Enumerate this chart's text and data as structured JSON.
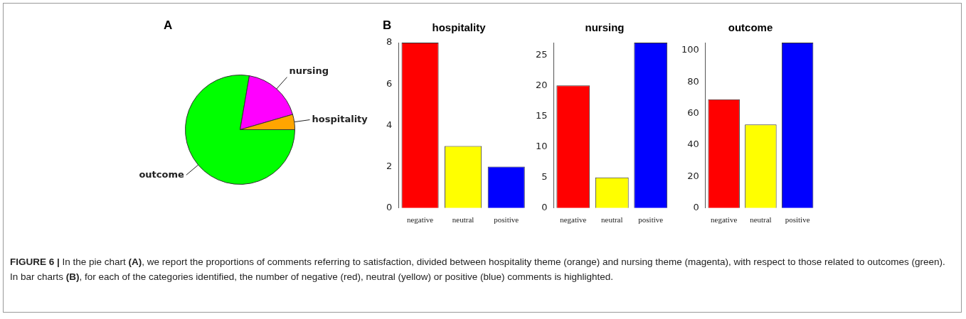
{
  "chart_data": [
    {
      "type": "pie",
      "categories": [
        "hospitality",
        "nursing",
        "outcome"
      ],
      "values": [
        4.5,
        17.8,
        77.7
      ],
      "colors": [
        "#ffa500",
        "#ff00ff",
        "#00ff00"
      ],
      "legend": false,
      "annotations": [
        "A",
        "FIGURE 6 | In the pie chart (A), we report the proportions of comments referring to satisfaction, divided between hospitality theme (orange) and nursing theme (magenta), with respect to those related to outcomes (green). In bar charts (B), for each of the categories identified, the number of negative (red), neutral (yellow) or positive (blue) comments is highlighted."
      ]
    },
    {
      "type": "bar",
      "title": "hospitality",
      "categories": [
        "negative",
        "neutral",
        "positive"
      ],
      "values": [
        8,
        3,
        2
      ],
      "colors": [
        "#ff0000",
        "#ffff00",
        "#0000ff"
      ],
      "ylim": [
        0,
        8
      ],
      "yticks": [
        0,
        2,
        4,
        6,
        8
      ],
      "grid": false,
      "legend": false,
      "annotations": [
        "B"
      ]
    },
    {
      "type": "bar",
      "title": "nursing",
      "categories": [
        "negative",
        "neutral",
        "positive"
      ],
      "values": [
        20,
        5,
        27
      ],
      "colors": [
        "#ff0000",
        "#ffff00",
        "#0000ff"
      ],
      "ylim": [
        0,
        27
      ],
      "yticks": [
        0,
        5,
        10,
        15,
        20,
        25
      ],
      "grid": false,
      "legend": false
    },
    {
      "type": "bar",
      "title": "outcome",
      "categories": [
        "negative",
        "neutral",
        "positive"
      ],
      "values": [
        69,
        53,
        105
      ],
      "colors": [
        "#ff0000",
        "#ffff00",
        "#0000ff"
      ],
      "ylim": [
        0,
        105
      ],
      "yticks": [
        0,
        20,
        40,
        60,
        80,
        100
      ],
      "grid": false,
      "legend": false
    }
  ]
}
